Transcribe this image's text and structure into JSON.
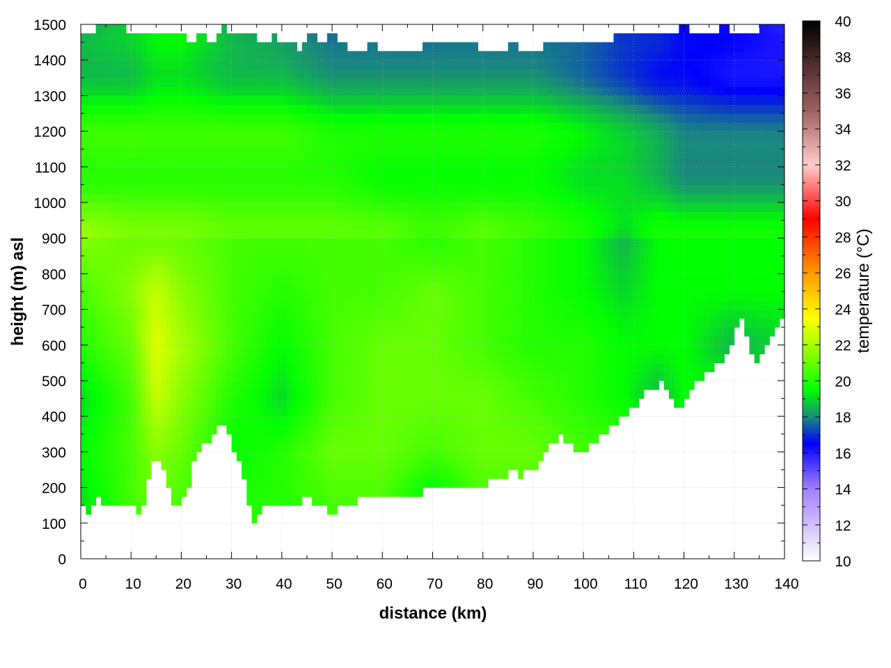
{
  "chart_data": {
    "type": "heatmap",
    "title": "",
    "xlabel": "distance (km)",
    "ylabel": "height (m) asl",
    "colorbar_label": "temperature (°C)",
    "xlim": [
      0,
      140
    ],
    "ylim": [
      0,
      1500
    ],
    "clim": [
      10,
      40
    ],
    "x_ticks": [
      0,
      10,
      20,
      30,
      40,
      50,
      60,
      70,
      80,
      90,
      100,
      110,
      120,
      130,
      140
    ],
    "y_ticks": [
      0,
      100,
      200,
      300,
      400,
      500,
      600,
      700,
      800,
      900,
      1000,
      1100,
      1200,
      1300,
      1400,
      1500
    ],
    "colorbar_ticks": [
      10,
      12,
      14,
      16,
      18,
      20,
      22,
      24,
      26,
      28,
      30,
      32,
      34,
      36,
      38,
      40
    ],
    "grid": true,
    "colormap_stops": [
      {
        "value": 10,
        "color": "#ffffff"
      },
      {
        "value": 14,
        "color": "#a080ff"
      },
      {
        "value": 16.5,
        "color": "#0000ff"
      },
      {
        "value": 18,
        "color": "#1a8c7a"
      },
      {
        "value": 19.5,
        "color": "#00ff00"
      },
      {
        "value": 21.5,
        "color": "#88ff00"
      },
      {
        "value": 23.5,
        "color": "#ffff00"
      },
      {
        "value": 26,
        "color": "#ff9900"
      },
      {
        "value": 29,
        "color": "#ff0000"
      },
      {
        "value": 32,
        "color": "#ffcccc"
      },
      {
        "value": 35,
        "color": "#a06060"
      },
      {
        "value": 40,
        "color": "#000000"
      }
    ],
    "terrain_height": {
      "x": [
        0,
        1,
        2,
        3,
        5,
        7,
        9,
        10,
        11,
        12,
        13,
        14,
        15,
        16,
        17,
        18,
        19,
        20,
        21,
        22,
        23,
        24,
        25,
        26,
        27,
        28,
        29,
        30,
        31,
        32,
        33,
        34,
        35,
        36,
        37,
        38,
        39,
        40,
        41,
        42,
        43,
        44,
        45,
        46,
        47,
        48,
        50,
        52,
        54,
        56,
        58,
        60,
        62,
        64,
        66,
        68,
        70,
        72,
        74,
        76,
        78,
        80,
        82,
        84,
        86,
        88,
        90,
        92,
        94,
        96,
        98,
        100,
        102,
        104,
        106,
        108,
        110,
        112,
        114,
        116,
        118,
        119,
        120,
        122,
        124,
        126,
        128,
        130,
        131,
        132,
        133,
        134,
        135,
        136,
        138,
        140
      ],
      "y": [
        150,
        130,
        145,
        175,
        150,
        140,
        140,
        150,
        130,
        135,
        170,
        270,
        280,
        275,
        220,
        165,
        145,
        150,
        180,
        240,
        300,
        320,
        330,
        345,
        360,
        370,
        360,
        330,
        285,
        250,
        190,
        110,
        95,
        150,
        175,
        145,
        150,
        155,
        170,
        150,
        145,
        150,
        185,
        175,
        145,
        140,
        135,
        140,
        155,
        170,
        175,
        175,
        170,
        165,
        175,
        190,
        200,
        190,
        190,
        195,
        200,
        210,
        220,
        235,
        240,
        235,
        255,
        280,
        335,
        345,
        315,
        305,
        325,
        345,
        380,
        405,
        420,
        470,
        470,
        500,
        440,
        400,
        430,
        480,
        520,
        540,
        560,
        600,
        680,
        660,
        600,
        570,
        550,
        580,
        640,
        690
      ]
    },
    "data_top_height": {
      "x": [
        0,
        2,
        4,
        6,
        8,
        10,
        12,
        14,
        16,
        18,
        20,
        22,
        24,
        26,
        28,
        30,
        32,
        34,
        36,
        38,
        40,
        42,
        44,
        46,
        48,
        50,
        54,
        58,
        62,
        66,
        70,
        74,
        78,
        82,
        86,
        90,
        94,
        98,
        100,
        104,
        108,
        112,
        116,
        120,
        124,
        128,
        132,
        136,
        140
      ],
      "y": [
        1490,
        1470,
        1495,
        1490,
        1495,
        1480,
        1460,
        1470,
        1480,
        1460,
        1490,
        1450,
        1470,
        1450,
        1490,
        1480,
        1460,
        1490,
        1430,
        1470,
        1440,
        1460,
        1420,
        1490,
        1450,
        1480,
        1420,
        1440,
        1430,
        1420,
        1450,
        1440,
        1440,
        1430,
        1440,
        1420,
        1450,
        1460,
        1440,
        1450,
        1470,
        1480,
        1470,
        1490,
        1470,
        1490,
        1480,
        1490,
        1500
      ]
    },
    "temperature_field": {
      "heights": [
        0,
        150,
        300,
        450,
        600,
        750,
        900,
        1050,
        1200,
        1350,
        1500
      ],
      "distances": [
        0,
        10,
        15,
        20,
        30,
        40,
        50,
        60,
        70,
        80,
        90,
        100,
        108,
        115,
        120,
        130,
        140
      ],
      "values": [
        [
          19.0,
          20.5,
          21.0,
          20.5,
          20.5,
          20.0,
          20.5,
          20.5,
          20.0,
          20.5,
          20.5,
          20.5,
          20.5,
          20.0,
          20.0,
          20.0,
          20.0
        ],
        [
          19.0,
          20.5,
          21.0,
          20.5,
          20.0,
          20.0,
          20.5,
          20.5,
          19.0,
          20.5,
          20.5,
          20.5,
          20.5,
          20.0,
          20.0,
          20.0,
          20.0
        ],
        [
          19.5,
          20.5,
          21.5,
          21.0,
          19.5,
          20.0,
          21.0,
          21.0,
          20.5,
          21.0,
          21.0,
          20.5,
          20.5,
          20.0,
          20.0,
          20.0,
          19.5
        ],
        [
          19.0,
          20.5,
          22.5,
          21.5,
          20.0,
          19.0,
          20.5,
          21.0,
          21.0,
          21.0,
          20.5,
          20.0,
          19.5,
          18.5,
          19.5,
          19.5,
          19.0
        ],
        [
          20.0,
          21.0,
          23.0,
          22.0,
          20.5,
          19.5,
          20.5,
          21.0,
          21.0,
          20.5,
          20.0,
          20.0,
          19.5,
          19.5,
          19.5,
          18.5,
          19.0
        ],
        [
          20.5,
          21.5,
          22.5,
          21.5,
          20.5,
          20.0,
          20.5,
          20.5,
          21.0,
          20.5,
          20.0,
          19.5,
          19.0,
          19.5,
          19.5,
          19.5,
          19.5
        ],
        [
          21.5,
          21.0,
          21.0,
          21.0,
          20.5,
          20.5,
          20.5,
          20.5,
          20.0,
          20.5,
          20.0,
          19.5,
          18.5,
          19.5,
          19.5,
          19.5,
          19.5
        ],
        [
          20.5,
          20.5,
          20.5,
          20.5,
          20.5,
          20.5,
          20.5,
          20.0,
          20.0,
          20.0,
          20.0,
          19.5,
          19.5,
          19.0,
          18.5,
          18.5,
          18.5
        ],
        [
          20.0,
          20.0,
          20.0,
          20.0,
          20.0,
          20.0,
          19.5,
          19.5,
          19.5,
          19.5,
          19.5,
          19.0,
          18.5,
          18.0,
          17.5,
          17.5,
          17.5
        ],
        [
          19.0,
          19.0,
          19.5,
          19.5,
          19.0,
          19.0,
          18.5,
          18.5,
          18.5,
          18.5,
          18.5,
          18.0,
          17.5,
          17.0,
          17.0,
          16.5,
          16.5
        ],
        [
          18.0,
          18.5,
          19.0,
          19.0,
          18.0,
          17.5,
          17.0,
          17.0,
          17.0,
          17.0,
          17.0,
          17.0,
          16.5,
          16.5,
          16.0,
          16.0,
          15.5
        ]
      ]
    }
  }
}
